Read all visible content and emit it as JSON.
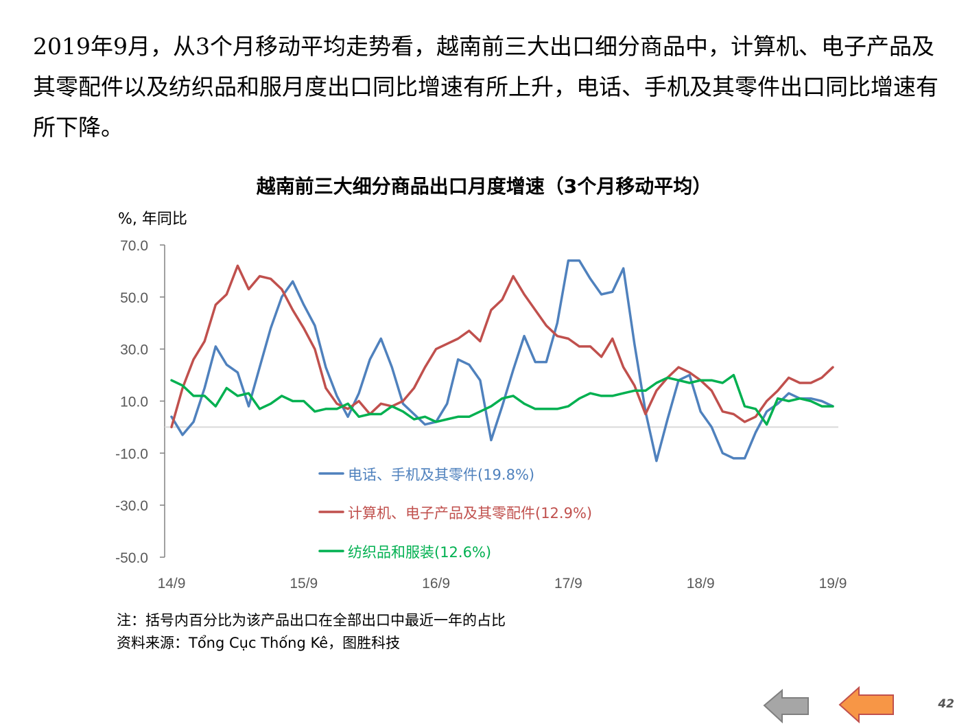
{
  "intro_text": "2019年9月，从3个月移动平均走势看，越南前三大出口细分商品中，计算机、电子产品及其零配件以及纺织品和服月度出口同比增速有所上升，电话、手机及其零件出口同比增速有所下降。",
  "footnote": "注：括号内百分比为该产品出口在全部出口中最近一年的占比",
  "source": "资料来源：Tổng Cục Thống Kê，图胜科技",
  "page_number": "42",
  "nav": {
    "prev_icon": "left-arrow-gray-icon",
    "next_icon": "left-arrow-orange-icon"
  },
  "chart_data": {
    "type": "line",
    "title": "越南前三大细分商品出口月度增速（3个月移动平均）",
    "ylabel": "%, 年同比",
    "ylim": [
      -50,
      70
    ],
    "yticks": [
      70,
      50,
      30,
      10,
      -10,
      -30,
      -50
    ],
    "ytick_labels": [
      "70.0",
      "50.0",
      "30.0",
      "10.0",
      "-10.0",
      "-30.0",
      "-50.0"
    ],
    "xtick_labels": [
      "14/9",
      "15/9",
      "16/9",
      "17/9",
      "18/9",
      "19/9"
    ],
    "xtick_index": [
      0,
      12,
      24,
      36,
      48,
      60
    ],
    "x_start": "2014-09",
    "x_end": "2019-09",
    "grid": false,
    "legend_position": "inside-bottom-left",
    "series": [
      {
        "name": "电话、手机及其零件(19.8%)",
        "color": "#4F81BD",
        "values": [
          4,
          -3,
          2,
          15,
          31,
          24,
          21,
          8,
          23,
          38,
          50,
          56,
          47,
          39,
          23,
          12,
          4,
          13,
          26,
          34,
          23,
          9,
          5,
          1,
          2,
          9,
          26,
          24,
          18,
          -5,
          8,
          22,
          35,
          25,
          25,
          40,
          64,
          64,
          57,
          51,
          52,
          61,
          32,
          6,
          -13,
          3,
          18,
          20,
          6,
          0,
          -10,
          -12,
          -12,
          -2,
          6,
          9,
          13,
          11,
          11,
          10,
          8
        ]
      },
      {
        "name": "计算机、电子产品及其零配件(12.9%)",
        "color": "#C0504D",
        "values": [
          0,
          15,
          26,
          33,
          47,
          51,
          62,
          53,
          58,
          57,
          53,
          45,
          38,
          30,
          15,
          9,
          7,
          10,
          5,
          9,
          8,
          10,
          15,
          23,
          30,
          32,
          34,
          37,
          33,
          45,
          49,
          58,
          51,
          45,
          39,
          35,
          34,
          31,
          31,
          27,
          34,
          23,
          16,
          5,
          14,
          19,
          23,
          21,
          18,
          14,
          6,
          5,
          2,
          4,
          10,
          14,
          19,
          17,
          17,
          19,
          23
        ]
      },
      {
        "name": "纺织品和服装(12.6%)",
        "color": "#00B050",
        "values": [
          18,
          16,
          12,
          12,
          8,
          15,
          12,
          13,
          7,
          9,
          12,
          10,
          10,
          6,
          7,
          7,
          9,
          4,
          5,
          5,
          8,
          6,
          3,
          4,
          2,
          3,
          4,
          4,
          6,
          8,
          11,
          12,
          9,
          7,
          7,
          7,
          8,
          11,
          13,
          12,
          12,
          13,
          14,
          14,
          17,
          19,
          18,
          17,
          18,
          18,
          17,
          20,
          8,
          7,
          1,
          11,
          10,
          11,
          10,
          8,
          8
        ]
      }
    ]
  }
}
